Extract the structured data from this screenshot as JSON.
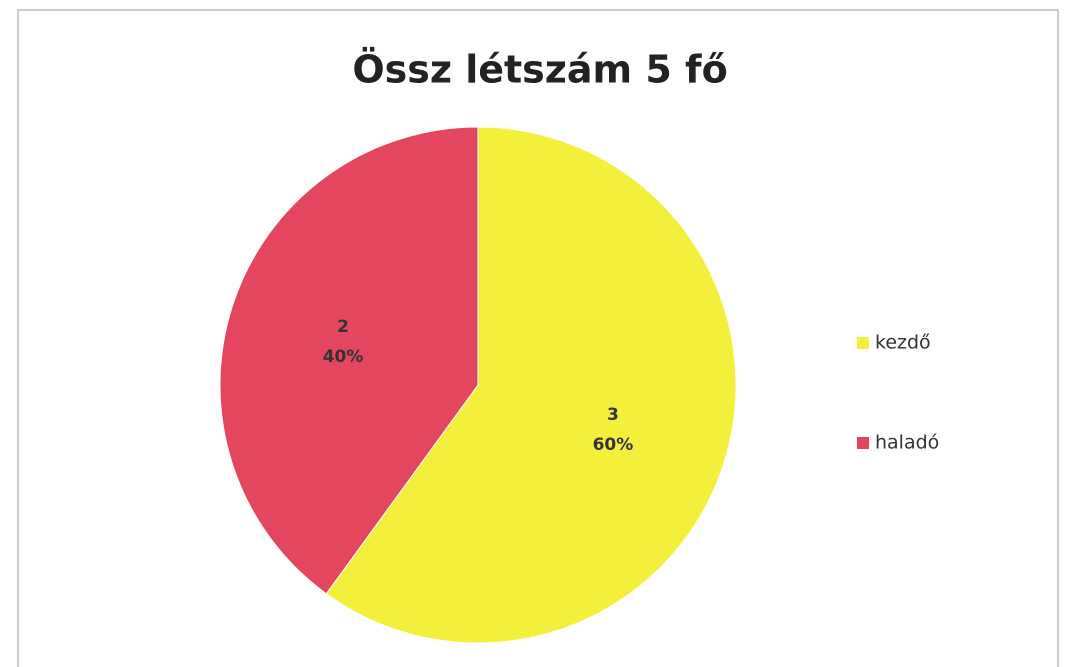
{
  "chart_data": {
    "type": "pie",
    "title": "Össz létszám 5 fő",
    "categories": [
      "kezdő",
      "haladó"
    ],
    "values": [
      3,
      2
    ],
    "percents": [
      60,
      40
    ],
    "percent_labels": [
      "60%",
      "40%"
    ],
    "colors": [
      "#f4ef3a",
      "#e4455f"
    ],
    "start_angle": 0,
    "direction": "clockwise",
    "legend": "right"
  }
}
